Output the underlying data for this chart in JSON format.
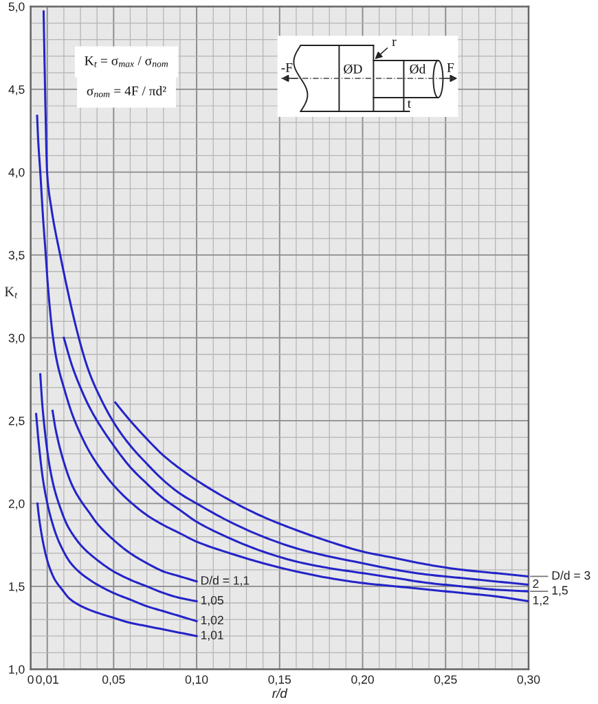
{
  "chart_data": {
    "type": "line",
    "xlabel": "r/d",
    "ylabel": "K$_{t}$",
    "xlim": [
      0,
      0.3
    ],
    "ylim": [
      1.0,
      5.0
    ],
    "xticks": [
      0,
      {
        "value": 0.01,
        "label": "0,01"
      },
      {
        "value": 0.05,
        "label": "0,05"
      },
      {
        "value": 0.1,
        "label": "0,10"
      },
      {
        "value": 0.15,
        "label": "0,15"
      },
      {
        "value": 0.2,
        "label": "0,20"
      },
      {
        "value": 0.25,
        "label": "0,25"
      },
      {
        "value": 0.3,
        "label": "0,30"
      }
    ],
    "yticks": [
      {
        "value": 1.0,
        "label": "1,0"
      },
      {
        "value": 1.5,
        "label": "1,5"
      },
      {
        "value": 2.0,
        "label": "2,0"
      },
      {
        "value": 2.5,
        "label": "2,5"
      },
      {
        "value": 3.0,
        "label": "3,0"
      },
      {
        "value": 3.5,
        "label": "3,5"
      },
      {
        "value": 4.0,
        "label": "4,0"
      },
      {
        "value": 4.5,
        "label": "4,5"
      },
      {
        "value": 5.0,
        "label": "5,0"
      }
    ],
    "grid": true,
    "line_style": "solid",
    "annotations": [
      "K$_{t}$ = σ$_{max}$ / σ$_{nom}$",
      "σ$_{nom}$ = 4F / πd²",
      "-F",
      "ØD",
      "Ød",
      "F",
      "r",
      "t"
    ],
    "series": [
      {
        "name": "D/d = 3",
        "color": "#2424c8",
        "x": [
          0.051,
          0.055,
          0.06,
          0.07,
          0.08,
          0.09,
          0.1,
          0.12,
          0.14,
          0.16,
          0.18,
          0.2,
          0.22,
          0.24,
          0.26,
          0.28,
          0.3
        ],
        "values": [
          2.61,
          2.56,
          2.5,
          2.39,
          2.29,
          2.21,
          2.14,
          2.02,
          1.92,
          1.84,
          1.77,
          1.71,
          1.67,
          1.63,
          1.6,
          1.58,
          1.56
        ]
      },
      {
        "name": "2",
        "color": "#2424c8",
        "x": [
          0.0078,
          0.0083,
          0.009,
          0.0099,
          0.0122,
          0.0178,
          0.029,
          0.035,
          0.04,
          0.05,
          0.06,
          0.07,
          0.08,
          0.09,
          0.1,
          0.12,
          0.14,
          0.16,
          0.18,
          0.2,
          0.22,
          0.24,
          0.26,
          0.28,
          0.3
        ],
        "values": [
          4.97,
          4.7,
          4.35,
          4.0,
          3.8,
          3.5,
          3.0,
          2.8,
          2.68,
          2.49,
          2.35,
          2.24,
          2.14,
          2.06,
          2.0,
          1.89,
          1.8,
          1.73,
          1.68,
          1.64,
          1.6,
          1.57,
          1.55,
          1.53,
          1.51
        ]
      },
      {
        "name": "1,5",
        "color": "#2424c8",
        "x": [
          0.02,
          0.025,
          0.03,
          0.035,
          0.04,
          0.05,
          0.06,
          0.07,
          0.08,
          0.09,
          0.1,
          0.12,
          0.14,
          0.16,
          0.18,
          0.2,
          0.22,
          0.24,
          0.26,
          0.28,
          0.3
        ],
        "values": [
          3.0,
          2.83,
          2.7,
          2.59,
          2.5,
          2.35,
          2.22,
          2.12,
          2.03,
          1.96,
          1.89,
          1.79,
          1.71,
          1.65,
          1.61,
          1.58,
          1.55,
          1.52,
          1.5,
          1.48,
          1.47
        ]
      },
      {
        "name": "1,2",
        "color": "#2424c8",
        "x": [
          0.0039,
          0.0045,
          0.0058,
          0.0075,
          0.0091,
          0.0105,
          0.0135,
          0.016,
          0.02,
          0.025,
          0.03,
          0.035,
          0.04,
          0.05,
          0.06,
          0.07,
          0.08,
          0.09,
          0.1,
          0.12,
          0.14,
          0.16,
          0.18,
          0.2,
          0.22,
          0.24,
          0.26,
          0.28,
          0.3
        ],
        "values": [
          4.34,
          4.2,
          4.0,
          3.72,
          3.5,
          3.3,
          3.0,
          2.85,
          2.7,
          2.54,
          2.42,
          2.32,
          2.24,
          2.11,
          2.01,
          1.93,
          1.87,
          1.82,
          1.77,
          1.7,
          1.64,
          1.59,
          1.55,
          1.52,
          1.5,
          1.48,
          1.46,
          1.44,
          1.41
        ]
      },
      {
        "name": "D/d = 1,1",
        "color": "#2424c8",
        "x": [
          0.0132,
          0.015,
          0.02,
          0.025,
          0.03,
          0.035,
          0.04,
          0.05,
          0.06,
          0.07,
          0.08,
          0.09,
          0.1
        ],
        "values": [
          2.56,
          2.45,
          2.25,
          2.11,
          2.02,
          1.95,
          1.88,
          1.78,
          1.7,
          1.64,
          1.59,
          1.56,
          1.53
        ]
      },
      {
        "name": "1,05",
        "color": "#2424c8",
        "x": [
          0.0058,
          0.007,
          0.009,
          0.011,
          0.014,
          0.018,
          0.022,
          0.027,
          0.031,
          0.04,
          0.05,
          0.06,
          0.07,
          0.08,
          0.09,
          0.1
        ],
        "values": [
          2.78,
          2.6,
          2.4,
          2.25,
          2.1,
          1.97,
          1.87,
          1.79,
          1.74,
          1.66,
          1.59,
          1.54,
          1.5,
          1.46,
          1.43,
          1.41
        ]
      },
      {
        "name": "1,02",
        "color": "#2424c8",
        "x": [
          0.0033,
          0.005,
          0.0078,
          0.012,
          0.017,
          0.025,
          0.037,
          0.05,
          0.06,
          0.07,
          0.08,
          0.09,
          0.1
        ],
        "values": [
          2.54,
          2.35,
          2.12,
          1.92,
          1.77,
          1.63,
          1.53,
          1.46,
          1.42,
          1.38,
          1.35,
          1.32,
          1.29
        ]
      },
      {
        "name": "1,01",
        "color": "#2424c8",
        "x": [
          0.0041,
          0.005,
          0.006,
          0.008,
          0.0105,
          0.0146,
          0.019,
          0.023,
          0.027,
          0.035,
          0.05,
          0.06,
          0.07,
          0.08,
          0.09,
          0.1
        ],
        "values": [
          2.0,
          1.92,
          1.85,
          1.74,
          1.64,
          1.54,
          1.48,
          1.43,
          1.4,
          1.36,
          1.31,
          1.28,
          1.26,
          1.24,
          1.22,
          1.2
        ]
      }
    ]
  }
}
